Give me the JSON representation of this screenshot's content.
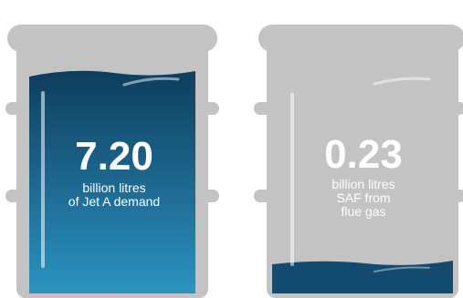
{
  "barrels": [
    {
      "value": "7.20",
      "label": [
        "billion litres",
        "of Jet A demand"
      ]
    },
    {
      "value": "0.23",
      "label": [
        "billion litres",
        "SAF from",
        "flue gas"
      ]
    }
  ]
}
